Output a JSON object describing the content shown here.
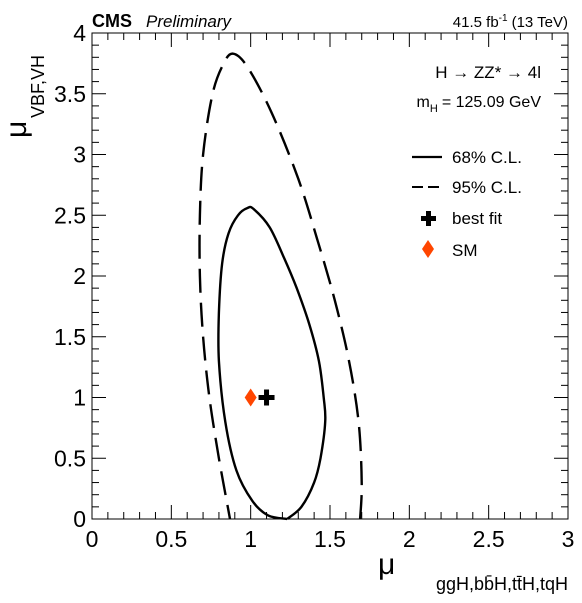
{
  "header": {
    "experiment": "CMS",
    "status": "Preliminary",
    "lumi": "41.5 fb",
    "lumi_exp": "-1",
    "energy": "(13 TeV)"
  },
  "annotations": {
    "process": "H → ZZ* → 4l",
    "mass_prefix": "m",
    "mass_sub": "H",
    "mass_value": "= 125.09 GeV"
  },
  "chart_data": {
    "type": "contour",
    "xlabel": "μ",
    "xlabel_sub": "ggH,bb̄H,tt̄H,tqH",
    "ylabel": "μ",
    "ylabel_sub": "VBF,VH",
    "xlim": [
      0,
      3
    ],
    "ylim": [
      0,
      4
    ],
    "xticks": [
      "0",
      "0.5",
      "1",
      "1.5",
      "2",
      "2.5",
      "3"
    ],
    "yticks": [
      "0",
      "0.5",
      "1",
      "1.5",
      "2",
      "2.5",
      "3",
      "3.5",
      "4"
    ],
    "legend_position": "top-right",
    "legend": [
      {
        "label": "68% C.L.",
        "style": "solid"
      },
      {
        "label": "95% C.L.",
        "style": "dashed"
      },
      {
        "label": "best fit",
        "marker": "cross"
      },
      {
        "label": "SM",
        "marker": "diamond"
      }
    ],
    "best_fit": {
      "x": 1.1,
      "y": 1.0
    },
    "sm_point": {
      "x": 1.0,
      "y": 1.0
    },
    "contour_68": [
      [
        1.23,
        0.0
      ],
      [
        1.32,
        0.1
      ],
      [
        1.4,
        0.3
      ],
      [
        1.44,
        0.5
      ],
      [
        1.47,
        0.8
      ],
      [
        1.46,
        1.0
      ],
      [
        1.43,
        1.3
      ],
      [
        1.37,
        1.6
      ],
      [
        1.29,
        1.9
      ],
      [
        1.21,
        2.15
      ],
      [
        1.12,
        2.4
      ],
      [
        1.02,
        2.55
      ],
      [
        0.98,
        2.56
      ],
      [
        0.92,
        2.5
      ],
      [
        0.86,
        2.35
      ],
      [
        0.82,
        2.1
      ],
      [
        0.8,
        1.7
      ],
      [
        0.8,
        1.3
      ],
      [
        0.84,
        0.8
      ],
      [
        0.91,
        0.4
      ],
      [
        1.01,
        0.15
      ],
      [
        1.11,
        0.03
      ],
      [
        1.23,
        0.0
      ]
    ],
    "contour_95": [
      [
        1.69,
        0.0
      ],
      [
        1.7,
        0.3
      ],
      [
        1.68,
        0.8
      ],
      [
        1.62,
        1.3
      ],
      [
        1.53,
        1.8
      ],
      [
        1.42,
        2.3
      ],
      [
        1.3,
        2.8
      ],
      [
        1.13,
        3.35
      ],
      [
        0.98,
        3.72
      ],
      [
        0.89,
        3.83
      ],
      [
        0.83,
        3.75
      ],
      [
        0.76,
        3.5
      ],
      [
        0.7,
        3.0
      ],
      [
        0.68,
        2.5
      ],
      [
        0.68,
        2.0
      ],
      [
        0.7,
        1.5
      ],
      [
        0.74,
        1.0
      ],
      [
        0.8,
        0.5
      ],
      [
        0.87,
        0.0
      ]
    ]
  }
}
